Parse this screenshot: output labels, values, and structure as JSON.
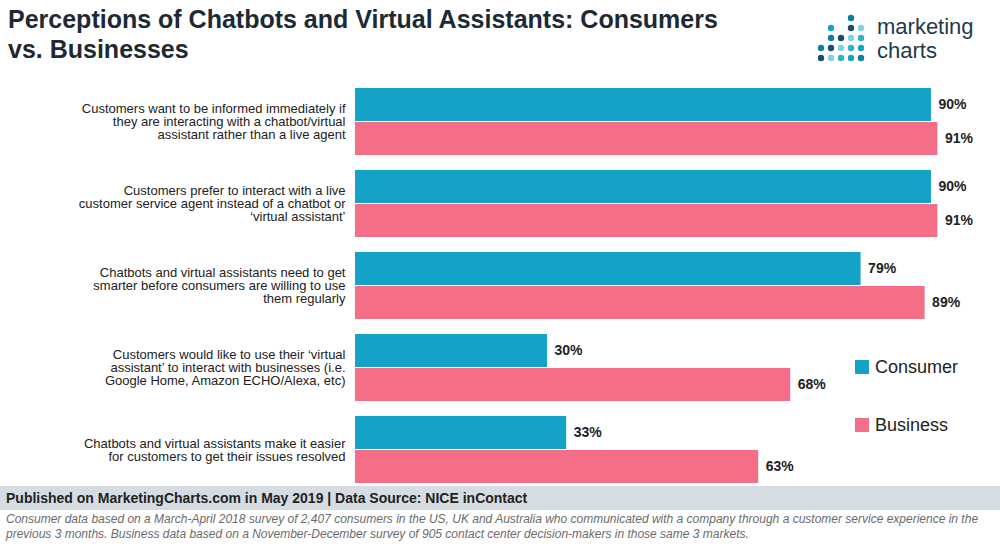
{
  "chart_data": {
    "type": "bar",
    "title": "Perceptions of Chatbots and Virtual Assistants: Consumers vs. Businesses",
    "logo": "marketing charts",
    "source": "Published on MarketingCharts.com in May 2019 | Data Source: NICE inContact",
    "note": "Consumer data based on a March-April 2018 survey of 2,407 consumers in the US, UK and Australia who communicated with a company through a customer service experience in the previous 3 months. Business data based on a November-December survey of 905 contact center decision-makers in those same 3 markets.",
    "orientation": "horizontal",
    "categories": [
      "Customers want to be informed immediately if they are interacting with a chatbot/virtual assistant rather than a live agent",
      "Customers prefer to interact with a live customer service agent instead of a chatbot or ‘virtual assistant’",
      "Chatbots and virtual assistants need to get smarter before consumers are willing to use them regularly",
      "Customers would like to use their ‘virtual assistant’ to interact with businesses (i.e. Google Home, Amazon ECHO/Alexa, etc)",
      "Chatbots and virtual assistants make it easier for customers to get their issues resolved"
    ],
    "series": [
      {
        "name": "Consumer",
        "color": "#14a3c7",
        "values": [
          90,
          90,
          79,
          30,
          33
        ],
        "value_labels": [
          "90%",
          "90%",
          "79%",
          "30%",
          "33%"
        ]
      },
      {
        "name": "Business",
        "color": "#f46e87",
        "values": [
          91,
          91,
          89,
          68,
          63
        ],
        "value_labels": [
          "91%",
          "91%",
          "89%",
          "68%",
          "63%"
        ]
      }
    ],
    "xlim": [
      0,
      100
    ],
    "grid": false,
    "legend": "right",
    "data_labels": true,
    "tick_labels": "y"
  }
}
